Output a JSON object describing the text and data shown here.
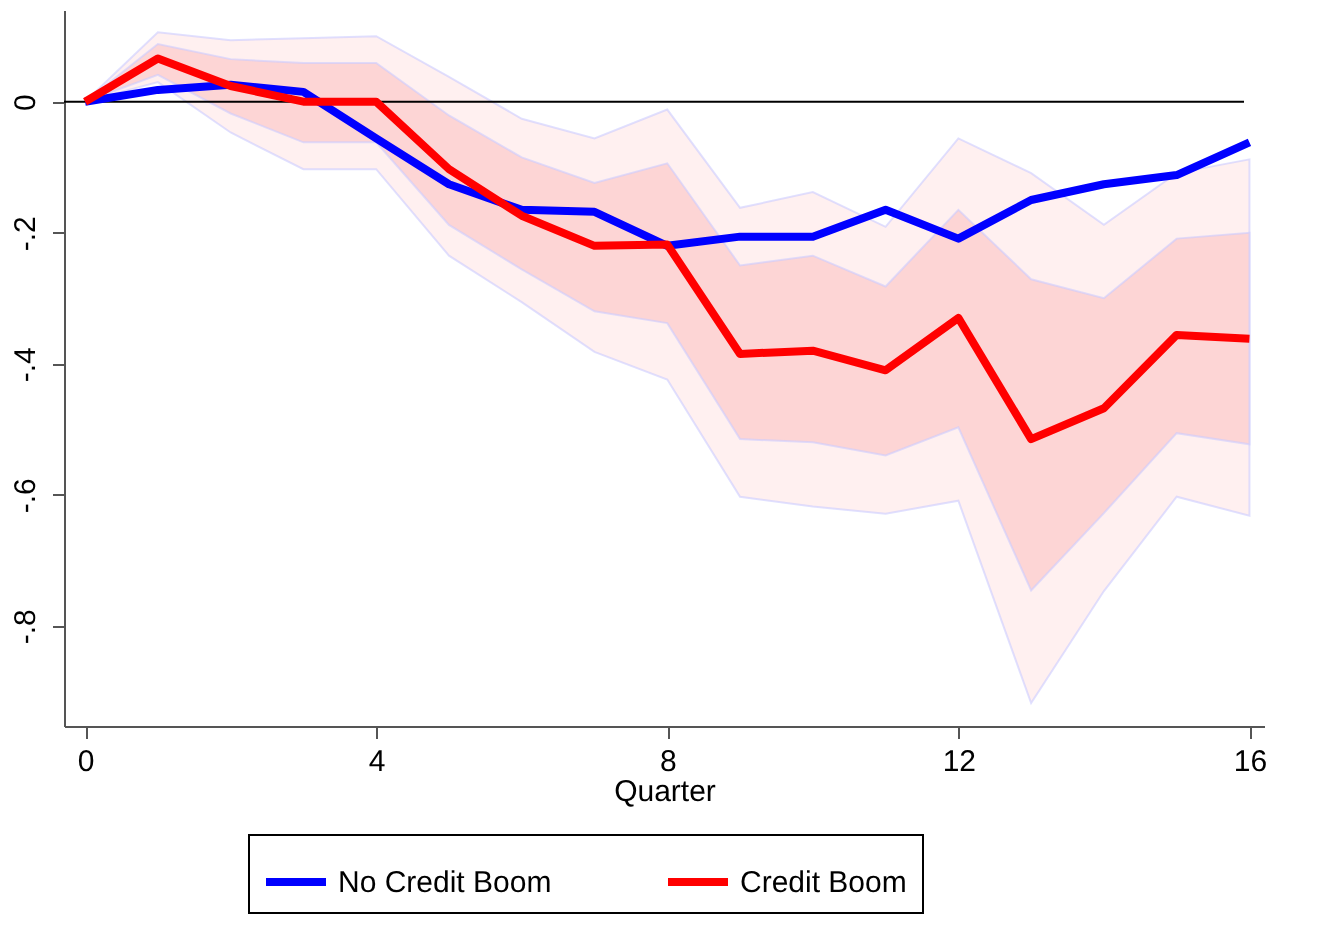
{
  "chart_data": {
    "type": "line",
    "xlabel": "Quarter",
    "x": [
      0,
      1,
      2,
      3,
      4,
      5,
      6,
      7,
      8,
      9,
      10,
      11,
      12,
      13,
      14,
      15,
      16
    ],
    "series": [
      {
        "type": "line",
        "color": "#fff0f0",
        "values": [
          null,
          null,
          null,
          null,
          null,
          null,
          null,
          null,
          null,
          null,
          null,
          null,
          null,
          null,
          null,
          null,
          null
        ],
        "lower": [
          0,
          0.03,
          -0.047,
          -0.103,
          -0.103,
          -0.235,
          -0.306,
          -0.382,
          -0.424,
          -0.603,
          -0.618,
          -0.629,
          -0.609,
          -0.918,
          -0.747,
          -0.603,
          -0.632
        ],
        "upper": [
          0,
          0.106,
          0.094,
          0.097,
          0.1,
          0.038,
          -0.026,
          -0.056,
          -0.012,
          -0.162,
          -0.138,
          -0.191,
          -0.056,
          -0.109,
          -0.188,
          -0.109,
          -0.088
        ]
      },
      {
        "name": "No Credit Boom",
        "color": "#0000ff",
        "values": [
          0,
          0.018,
          0.026,
          0.015,
          -0.056,
          -0.126,
          -0.165,
          -0.168,
          -0.22,
          -0.206,
          -0.206,
          -0.165,
          -0.209,
          -0.15,
          -0.126,
          -0.112,
          -0.062
        ]
      },
      {
        "name": "Credit Boom",
        "color": "#ff0000",
        "values": [
          0,
          0.066,
          0.024,
          0,
          0,
          -0.103,
          -0.174,
          -0.22,
          -0.218,
          -0.385,
          -0.38,
          -0.41,
          -0.33,
          -0.515,
          -0.468,
          -0.356,
          -0.362
        ],
        "lower": [
          0,
          0.041,
          -0.018,
          -0.062,
          -0.062,
          -0.188,
          -0.256,
          -0.32,
          -0.338,
          -0.515,
          -0.52,
          -0.54,
          -0.497,
          -0.746,
          -0.628,
          -0.506,
          -0.523
        ],
        "upper": [
          0,
          0.088,
          0.065,
          0.059,
          0.059,
          -0.021,
          -0.085,
          -0.124,
          -0.094,
          -0.25,
          -0.235,
          -0.282,
          -0.165,
          -0.271,
          -0.3,
          -0.209,
          -0.2
        ]
      }
    ],
    "xlim": [
      -0.29,
      16.2
    ],
    "xticks": [
      0,
      4,
      8,
      12,
      16
    ],
    "ylim": [
      -0.953,
      0.14
    ],
    "yticks": [
      {
        "value": 0,
        "label": "0"
      },
      {
        "value": -0.2,
        "label": "-.2"
      },
      {
        "value": -0.4,
        "label": "-.4"
      },
      {
        "value": -0.6,
        "label": "-.6"
      },
      {
        "value": -0.8,
        "label": "-.8"
      }
    ],
    "ref_lines": [
      {
        "axis": "y",
        "value": 0,
        "color": "#000000"
      }
    ],
    "grid": false,
    "legend": "bottom",
    "line_style": "solid",
    "marker": "none"
  }
}
